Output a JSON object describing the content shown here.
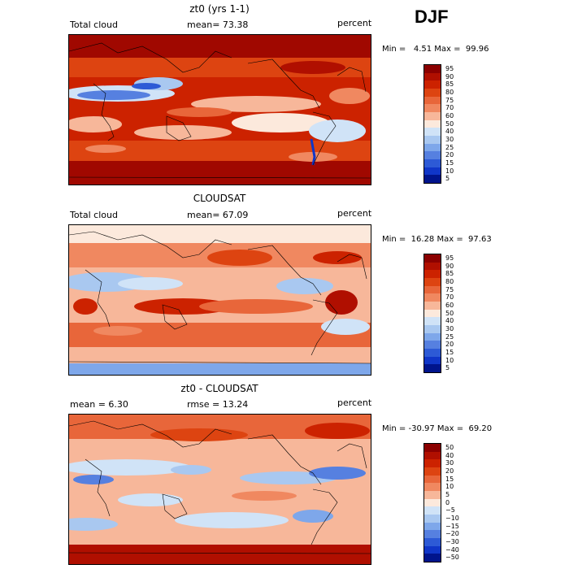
{
  "season": "DJF",
  "panels": [
    {
      "id": "model",
      "title": "zt0 (yrs 1-1)",
      "left_label": "Total cloud",
      "center_label": "mean=  73.38",
      "right_label": "percent",
      "min_max": "Min =   4.51 Max =  99.96",
      "colorbar": {
        "levels": [
          "95",
          "90",
          "85",
          "80",
          "75",
          "70",
          "60",
          "50",
          "40",
          "30",
          "25",
          "20",
          "15",
          "10",
          "5"
        ],
        "colors": [
          "#8b0000",
          "#b00f00",
          "#cc2200",
          "#dd4411",
          "#e8663a",
          "#f08860",
          "#f7b79a",
          "#fce9dc",
          "#d0e3f7",
          "#a9c8f0",
          "#7ea7ea",
          "#5680e0",
          "#2d5ad6",
          "#1036c8",
          "#00148c"
        ]
      }
    },
    {
      "id": "obs",
      "title": "CLOUDSAT",
      "left_label": "Total cloud",
      "center_label": "mean=  67.09",
      "right_label": "percent",
      "min_max": "Min =  16.28 Max =  97.63",
      "colorbar": {
        "levels": [
          "95",
          "90",
          "85",
          "80",
          "75",
          "70",
          "60",
          "50",
          "40",
          "30",
          "25",
          "20",
          "15",
          "10",
          "5"
        ],
        "colors": [
          "#8b0000",
          "#b00f00",
          "#cc2200",
          "#dd4411",
          "#e8663a",
          "#f08860",
          "#f7b79a",
          "#fce9dc",
          "#d0e3f7",
          "#a9c8f0",
          "#7ea7ea",
          "#5680e0",
          "#2d5ad6",
          "#1036c8",
          "#00148c"
        ]
      }
    },
    {
      "id": "diff",
      "title": "zt0 - CLOUDSAT",
      "left_label": "mean =   6.30",
      "center_label": "rmse =  13.24",
      "right_label": "percent",
      "min_max": "Min = -30.97 Max =  69.20",
      "colorbar": {
        "levels": [
          "50",
          "40",
          "30",
          "20",
          "15",
          "10",
          "5",
          "0",
          "−5",
          "−10",
          "−15",
          "−20",
          "−30",
          "−40",
          "−50"
        ],
        "colors": [
          "#8b0000",
          "#b00f00",
          "#cc2200",
          "#dd4411",
          "#e8663a",
          "#f08860",
          "#f7b79a",
          "#fce9dc",
          "#d0e3f7",
          "#a9c8f0",
          "#7ea7ea",
          "#5680e0",
          "#2d5ad6",
          "#1036c8",
          "#00148c"
        ]
      }
    }
  ]
}
